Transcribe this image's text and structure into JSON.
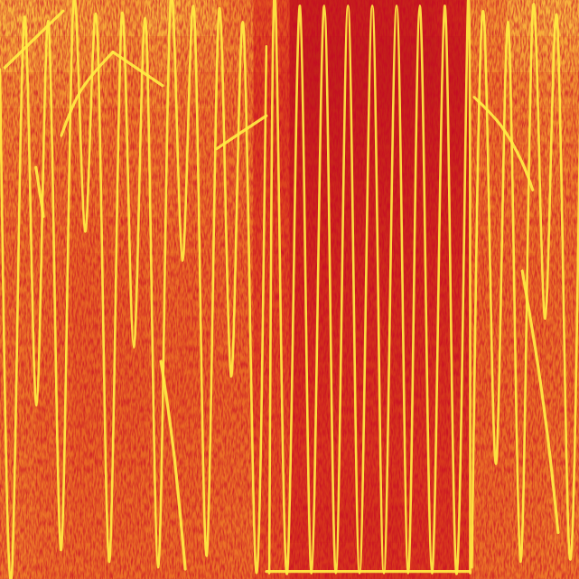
{
  "chart_data": {
    "type": "heatmap",
    "tick_labels": false,
    "grid": false,
    "xlim": [
      0,
      100
    ],
    "ylim": [
      0,
      100
    ],
    "zlim": [
      0,
      1
    ],
    "x_bins": [
      0,
      6.25,
      12.5,
      18.75,
      25,
      31.25,
      37.5,
      43.75,
      50,
      56.25,
      62.5,
      68.75,
      75,
      81.25,
      87.5,
      93.75,
      100
    ],
    "y_bins": [
      100,
      93.75,
      87.5,
      81.25,
      75,
      68.75,
      62.5,
      56.25,
      50,
      43.75,
      37.5,
      31.25,
      25,
      18.75,
      12.5,
      6.25,
      0
    ],
    "cells": [
      [
        0.72,
        0.7,
        0.68,
        0.66,
        0.7,
        0.68,
        0.6,
        0.45,
        0.28,
        0.28,
        0.28,
        0.28,
        0.3,
        0.62,
        0.7,
        0.72
      ],
      [
        0.68,
        0.66,
        0.64,
        0.62,
        0.64,
        0.62,
        0.6,
        0.42,
        0.27,
        0.27,
        0.27,
        0.27,
        0.28,
        0.6,
        0.66,
        0.68
      ],
      [
        0.62,
        0.62,
        0.6,
        0.58,
        0.6,
        0.58,
        0.56,
        0.4,
        0.27,
        0.27,
        0.27,
        0.27,
        0.28,
        0.56,
        0.6,
        0.62
      ],
      [
        0.6,
        0.58,
        0.57,
        0.56,
        0.57,
        0.56,
        0.55,
        0.4,
        0.28,
        0.28,
        0.28,
        0.28,
        0.29,
        0.55,
        0.58,
        0.6
      ],
      [
        0.58,
        0.56,
        0.55,
        0.55,
        0.56,
        0.55,
        0.54,
        0.4,
        0.29,
        0.29,
        0.29,
        0.29,
        0.3,
        0.55,
        0.56,
        0.58
      ],
      [
        0.56,
        0.55,
        0.54,
        0.54,
        0.55,
        0.54,
        0.54,
        0.41,
        0.3,
        0.3,
        0.3,
        0.3,
        0.31,
        0.54,
        0.55,
        0.56
      ],
      [
        0.55,
        0.54,
        0.52,
        0.52,
        0.54,
        0.53,
        0.53,
        0.42,
        0.31,
        0.31,
        0.31,
        0.31,
        0.32,
        0.53,
        0.54,
        0.55
      ],
      [
        0.54,
        0.53,
        0.51,
        0.51,
        0.53,
        0.52,
        0.52,
        0.42,
        0.32,
        0.32,
        0.32,
        0.32,
        0.33,
        0.52,
        0.53,
        0.54
      ],
      [
        0.54,
        0.52,
        0.5,
        0.5,
        0.52,
        0.52,
        0.52,
        0.43,
        0.33,
        0.33,
        0.33,
        0.33,
        0.34,
        0.52,
        0.53,
        0.54
      ],
      [
        0.54,
        0.52,
        0.5,
        0.5,
        0.52,
        0.51,
        0.52,
        0.43,
        0.34,
        0.34,
        0.34,
        0.34,
        0.35,
        0.52,
        0.53,
        0.54
      ],
      [
        0.54,
        0.52,
        0.5,
        0.5,
        0.51,
        0.51,
        0.52,
        0.44,
        0.35,
        0.35,
        0.35,
        0.35,
        0.36,
        0.52,
        0.53,
        0.54
      ],
      [
        0.54,
        0.52,
        0.5,
        0.5,
        0.51,
        0.51,
        0.52,
        0.44,
        0.36,
        0.36,
        0.36,
        0.36,
        0.37,
        0.52,
        0.53,
        0.54
      ],
      [
        0.55,
        0.53,
        0.51,
        0.51,
        0.52,
        0.52,
        0.53,
        0.45,
        0.37,
        0.37,
        0.37,
        0.37,
        0.38,
        0.53,
        0.53,
        0.55
      ],
      [
        0.55,
        0.53,
        0.52,
        0.52,
        0.52,
        0.52,
        0.53,
        0.45,
        0.37,
        0.36,
        0.36,
        0.37,
        0.38,
        0.53,
        0.54,
        0.55
      ],
      [
        0.56,
        0.54,
        0.52,
        0.52,
        0.53,
        0.53,
        0.54,
        0.45,
        0.36,
        0.35,
        0.35,
        0.36,
        0.38,
        0.53,
        0.54,
        0.56
      ],
      [
        0.56,
        0.54,
        0.53,
        0.53,
        0.53,
        0.53,
        0.54,
        0.46,
        0.37,
        0.36,
        0.36,
        0.37,
        0.38,
        0.54,
        0.55,
        0.56
      ]
    ],
    "color": "#ffee44",
    "line_style": "smooth",
    "series": [
      {
        "x": [
          0,
          2.1,
          4.2,
          6.3,
          8.4,
          10.5,
          12.6,
          14.7,
          16.8,
          18.9,
          21,
          23.1,
          25.2,
          27.3,
          29.4,
          31.5,
          33.6,
          35.7,
          37.8,
          39.9,
          42,
          44.1,
          46
        ],
        "values": [
          88,
          2,
          97,
          30,
          96,
          5,
          98,
          60,
          95,
          3,
          97,
          40,
          96,
          2,
          99,
          55,
          97,
          4,
          98,
          35,
          96,
          3,
          92
        ]
      },
      {
        "x": [
          46.5,
          47.6,
          49.6,
          51.8,
          53.8,
          56.0,
          58.0,
          60.1,
          62.1,
          64.3,
          66.3,
          68.5,
          70.5,
          72.5,
          74.6,
          76.8,
          78.8,
          80.8,
          81.2
        ],
        "values": [
          1,
          99,
          1,
          99,
          1,
          99,
          1,
          99,
          1,
          99,
          1,
          99,
          1,
          99,
          1,
          99,
          1,
          99,
          1
        ]
      },
      {
        "x": [
          81.5,
          83.6,
          85.7,
          87.8,
          89.9,
          92,
          94.1,
          96.2,
          98.3,
          100.4
        ],
        "values": [
          2,
          97,
          20,
          96,
          3,
          98,
          45,
          97,
          5,
          95
        ]
      },
      {
        "x": [
          0.8,
          10.9
        ],
        "values": [
          88.3,
          98.1
        ]
      },
      {
        "x": [
          10.6,
          14.0,
          19.5
        ],
        "values": [
          76.6,
          84.4,
          91.0
        ]
      },
      {
        "x": [
          19.5,
          28.1
        ],
        "values": [
          91.0,
          85.2
        ]
      },
      {
        "x": [
          37.4,
          46.0
        ],
        "values": [
          74.3,
          80.0
        ]
      },
      {
        "x": [
          81.9,
          86.6,
          90.2,
          92.0
        ],
        "values": [
          83.2,
          78.2,
          71.9,
          67.2
        ]
      },
      {
        "x": [
          90.2,
          92.8,
          94.9,
          96.4
        ],
        "values": [
          53.2,
          37.6,
          22.0,
          8.0
        ]
      },
      {
        "x": [
          27.8,
          30.0,
          32.0
        ],
        "values": [
          37.6,
          22.0,
          1.7
        ]
      },
      {
        "x": [
          46.0,
          81.1
        ],
        "values": [
          1.3,
          1.3
        ]
      },
      {
        "x": [
          6.2,
          7.5
        ],
        "values": [
          71.1,
          62.6
        ]
      }
    ]
  }
}
